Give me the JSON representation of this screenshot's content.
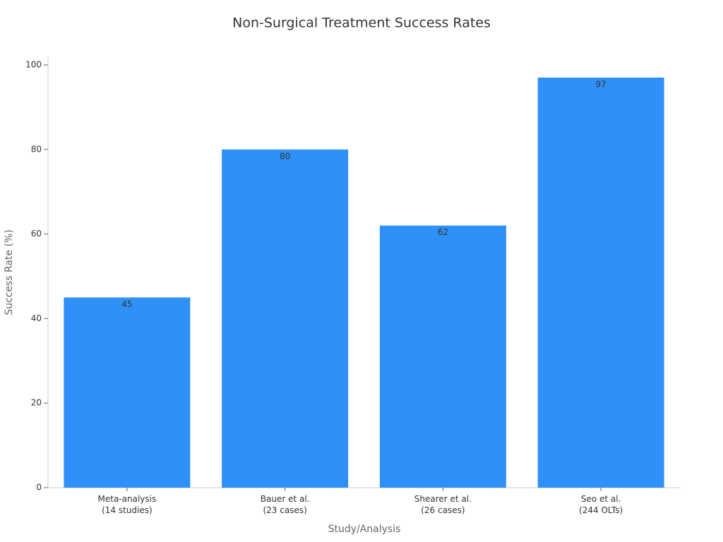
{
  "chart_data": {
    "type": "bar",
    "title": "Non-Surgical Treatment Success Rates",
    "x_label": "Study/Analysis",
    "y_label": "Success Rate (%)",
    "categories": [
      "Meta-analysis\n(14 studies)",
      "Bauer et al.\n(23 cases)",
      "Shearer et al.\n(26 cases)",
      "Seo et al.\n(244 OLTs)"
    ],
    "values": [
      45,
      80,
      62,
      97
    ],
    "color": "#2f91f7",
    "ylim": [
      0,
      102
    ],
    "yticks": [
      0,
      20,
      40,
      60,
      80,
      100
    ],
    "grid": false
  }
}
